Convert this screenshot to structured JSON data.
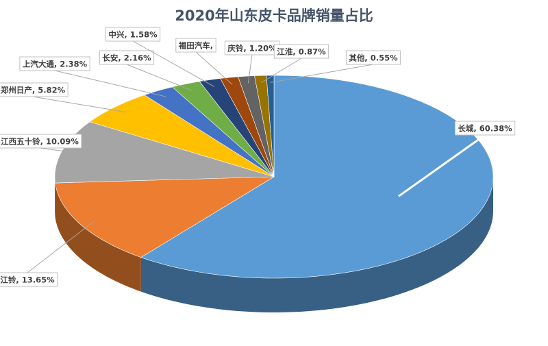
{
  "chart_data": {
    "type": "pie3d",
    "title": "2020年山东皮卡品牌销量占比",
    "categories": [
      "长城",
      "江铃",
      "江西五十铃",
      "郑州日产",
      "上汽大通",
      "长安",
      "中兴",
      "福田汽车",
      "庆铃",
      "江淮",
      "其他"
    ],
    "values": [
      60.38,
      13.65,
      10.09,
      5.82,
      2.38,
      2.16,
      1.58,
      1.32,
      1.2,
      0.87,
      0.55
    ],
    "value_labels": [
      "长城, 60.38%",
      "江铃, 13.65%",
      "江西五十铃, 10.09%",
      "郑州日产, 5.82%",
      "上汽大通, 2.38%",
      "长安, 2.16%",
      "中兴, 1.58%",
      "福田汽车,",
      "庆铃, 1.20%",
      "江淮, 0.87%",
      "其他, 0.55%"
    ],
    "colors": [
      "#5b9bd5",
      "#ed7d31",
      "#a5a5a5",
      "#ffc000",
      "#4472c4",
      "#70ad47",
      "#264478",
      "#9e480e",
      "#636363",
      "#997300",
      "#255e91"
    ]
  }
}
